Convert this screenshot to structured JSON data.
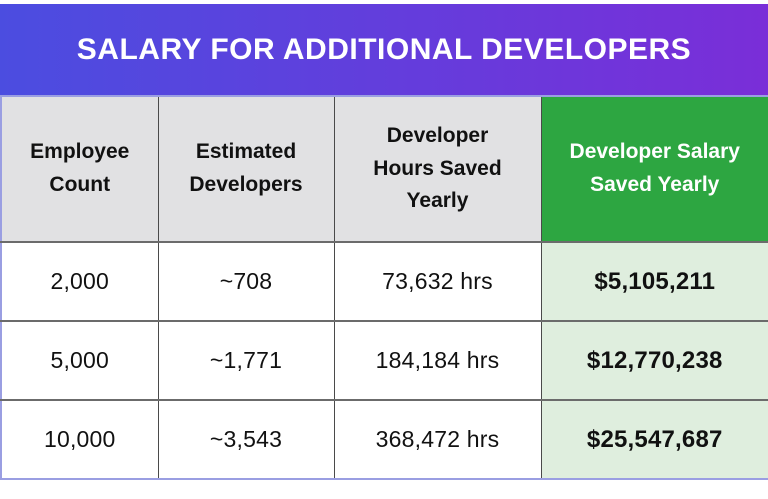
{
  "title": "SALARY FOR ADDITIONAL DEVELOPERS",
  "table": {
    "headers": [
      "Employee Count",
      "Estimated Developers",
      "Developer Hours Saved Yearly",
      "Developer Salary Saved Yearly"
    ],
    "rows": [
      [
        "2,000",
        "~708",
        "73,632 hrs",
        "$5,105,211"
      ],
      [
        "5,000",
        "~1,771",
        "184,184 hrs",
        "$12,770,238"
      ],
      [
        "10,000",
        "~3,543",
        "368,472 hrs",
        "$25,547,687"
      ]
    ]
  },
  "colors": {
    "banner_gradient_start": "#4b4de0",
    "banner_gradient_end": "#7a2ed8",
    "highlight_header_bg": "#2da641",
    "highlight_header_text": "#ffffff",
    "highlight_cell_bg": "#dfeede",
    "header_bg": "#e1e1e3",
    "outer_border": "#9a9ee2",
    "inner_border": "#4a4a4a",
    "text": "#111111",
    "title_text": "#ffffff"
  },
  "chart_data": {
    "type": "table",
    "title": "SALARY FOR ADDITIONAL DEVELOPERS",
    "columns": [
      "Employee Count",
      "Estimated Developers",
      "Developer Hours Saved Yearly",
      "Developer Salary Saved Yearly"
    ],
    "rows": [
      {
        "employee_count": 2000,
        "estimated_developers": 708,
        "hours_saved_yearly": 73632,
        "salary_saved_yearly": 5105211
      },
      {
        "employee_count": 5000,
        "estimated_developers": 1771,
        "hours_saved_yearly": 184184,
        "salary_saved_yearly": 12770238
      },
      {
        "employee_count": 10000,
        "estimated_developers": 3543,
        "hours_saved_yearly": 368472,
        "salary_saved_yearly": 25547687
      }
    ],
    "notes": "Last column highlighted in green; values as displayed: counts with thousands separators, developers prefixed with ~, hours suffixed with ' hrs', salaries prefixed with $"
  }
}
